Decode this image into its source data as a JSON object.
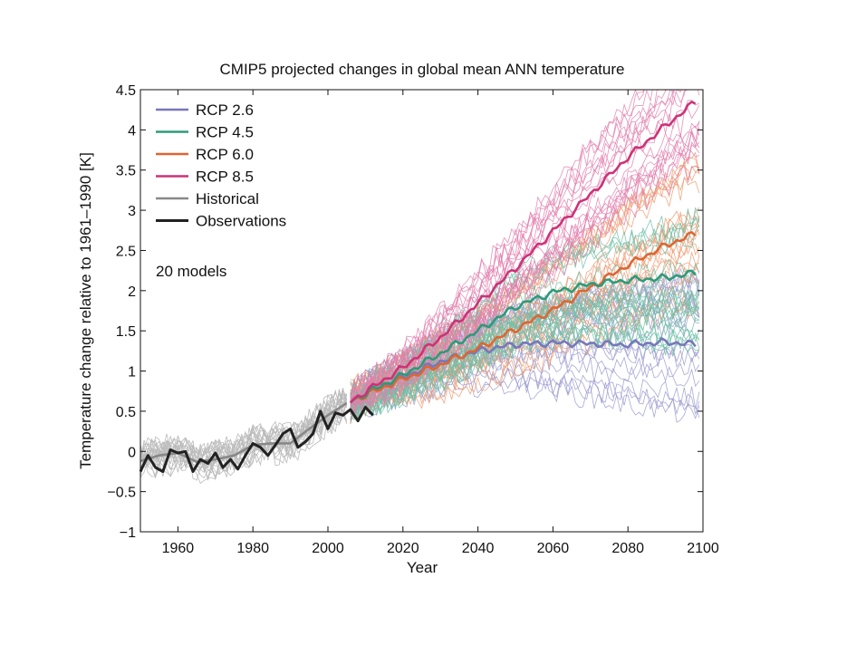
{
  "chart_data": {
    "type": "line",
    "title": "CMIP5 projected changes in global mean ANN temperature",
    "xlabel": "Year",
    "ylabel": "Temperature change relative to 1961–1990 [K]",
    "xlim": [
      1950,
      2100
    ],
    "ylim": [
      -1,
      4.5
    ],
    "xticks": [
      1960,
      1980,
      2000,
      2020,
      2040,
      2060,
      2080,
      2100
    ],
    "yticks": [
      -1,
      -0.5,
      0,
      0.5,
      1,
      1.5,
      2,
      2.5,
      3,
      3.5,
      4,
      4.5
    ],
    "ytick_labels": [
      "−1",
      "−0.5",
      "0",
      "0.5",
      "1",
      "1.5",
      "2",
      "2.5",
      "3",
      "3.5",
      "4",
      "4.5"
    ],
    "grid": false,
    "legend_position": "top-left",
    "annotation": "20 models",
    "series": [
      {
        "name": "RCP 2.6",
        "color": "#7777bb",
        "x": [
          2006,
          2010,
          2020,
          2030,
          2040,
          2050,
          2060,
          2070,
          2080,
          2090,
          2098
        ],
        "y": [
          0.62,
          0.72,
          0.92,
          1.12,
          1.25,
          1.33,
          1.35,
          1.34,
          1.33,
          1.36,
          1.33
        ]
      },
      {
        "name": "RCP 4.5",
        "color": "#2e9a78",
        "x": [
          2006,
          2010,
          2020,
          2030,
          2040,
          2050,
          2060,
          2070,
          2080,
          2090,
          2098
        ],
        "y": [
          0.62,
          0.72,
          0.95,
          1.22,
          1.5,
          1.8,
          1.98,
          2.08,
          2.13,
          2.16,
          2.22
        ]
      },
      {
        "name": "RCP 6.0",
        "color": "#dd6633",
        "x": [
          2006,
          2010,
          2020,
          2030,
          2040,
          2050,
          2060,
          2070,
          2080,
          2090,
          2098
        ],
        "y": [
          0.62,
          0.7,
          0.9,
          1.08,
          1.28,
          1.52,
          1.76,
          2.04,
          2.32,
          2.56,
          2.71
        ]
      },
      {
        "name": "RCP 8.5",
        "color": "#cc3377",
        "x": [
          2006,
          2010,
          2020,
          2030,
          2040,
          2050,
          2060,
          2070,
          2080,
          2090,
          2098
        ],
        "y": [
          0.62,
          0.74,
          1.04,
          1.42,
          1.84,
          2.28,
          2.74,
          3.2,
          3.66,
          4.05,
          4.35
        ]
      },
      {
        "name": "Historical",
        "color": "#888888",
        "x": [
          1950,
          1955,
          1960,
          1965,
          1970,
          1975,
          1980,
          1985,
          1990,
          1995,
          2000,
          2005
        ],
        "y": [
          -0.12,
          -0.05,
          -0.02,
          -0.13,
          -0.1,
          -0.05,
          0.08,
          0.1,
          0.1,
          0.28,
          0.45,
          0.6
        ]
      },
      {
        "name": "Observations",
        "color": "#222222",
        "x": [
          1950,
          1952,
          1954,
          1956,
          1958,
          1960,
          1962,
          1964,
          1966,
          1968,
          1970,
          1972,
          1974,
          1976,
          1978,
          1980,
          1982,
          1984,
          1986,
          1988,
          1990,
          1992,
          1994,
          1996,
          1998,
          2000,
          2002,
          2004,
          2006,
          2008,
          2010,
          2012
        ],
        "y": [
          -0.25,
          -0.05,
          -0.2,
          -0.25,
          0.02,
          -0.02,
          0.0,
          -0.25,
          -0.1,
          -0.15,
          -0.02,
          -0.2,
          -0.1,
          -0.22,
          -0.05,
          0.1,
          0.05,
          -0.05,
          0.08,
          0.22,
          0.28,
          0.05,
          0.12,
          0.22,
          0.5,
          0.28,
          0.48,
          0.45,
          0.52,
          0.38,
          0.55,
          0.45
        ]
      }
    ]
  }
}
